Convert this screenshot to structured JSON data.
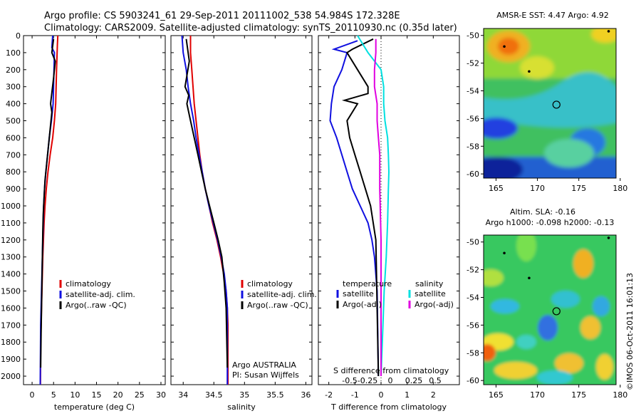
{
  "header": {
    "line1": "Argo profile: CS 5903241_61 29-Sep-2011 20111002_538 54.984S 172.328E",
    "line2": "Climatology: CARS2009. Satellite-adjusted climatology: synTS_20110930.nc (0.35d later)"
  },
  "stamp": "©IMOS 06-Oct-2011 16:01:13",
  "colors": {
    "climatology": "#e00000",
    "satellite": "#1010e0",
    "argo": "#000000",
    "sal_satellite": "#00e0e0",
    "sal_argo": "#e000e0"
  },
  "chart_data": [
    {
      "id": "temperature",
      "type": "line",
      "xlabel": "temperature (deg C)",
      "ylabel": "",
      "xlim": [
        -2,
        31
      ],
      "ylim": [
        2050,
        0
      ],
      "xticks": [
        0,
        5,
        10,
        15,
        20,
        25,
        30
      ],
      "xticklabels": [
        "0",
        "5",
        "10",
        "15",
        "20",
        "25",
        "30"
      ],
      "yticks": [
        0,
        100,
        200,
        300,
        400,
        500,
        600,
        700,
        800,
        900,
        1000,
        1100,
        1200,
        1300,
        1400,
        1500,
        1600,
        1700,
        1800,
        1900,
        2000
      ],
      "yticklabels": [
        "0",
        "100",
        "200",
        "300",
        "400",
        "500",
        "600",
        "700",
        "800",
        "900",
        "1000",
        "1100",
        "1200",
        "1300",
        "1400",
        "1500",
        "1600",
        "1700",
        "1800",
        "1900",
        "2000"
      ],
      "legend": {
        "position": "lower-middle",
        "entries": [
          "climatology",
          "satellite-adj. clim.",
          "Argo(..raw -QC)"
        ]
      },
      "series": [
        {
          "name": "climatology",
          "color": "#e00000",
          "x": [
            6.0,
            5.9,
            5.7,
            5.5,
            5.2,
            4.8,
            4.2,
            3.7,
            3.3,
            3.0,
            2.8,
            2.65,
            2.5,
            2.4,
            2.3,
            2.2,
            2.1,
            2.0,
            1.95
          ],
          "y": [
            0,
            50,
            200,
            400,
            500,
            600,
            700,
            800,
            900,
            1000,
            1100,
            1200,
            1300,
            1400,
            1500,
            1600,
            1700,
            1800,
            2050
          ]
        },
        {
          "name": "satellite-adj. clim.",
          "color": "#1010e0",
          "x": [
            4.8,
            4.6,
            5.2,
            5.1,
            4.9,
            4.5,
            4.0,
            3.6,
            3.2,
            2.9,
            2.7,
            2.6,
            2.5,
            2.4,
            2.3,
            2.2,
            2.1,
            2.0,
            1.9
          ],
          "y": [
            0,
            70,
            100,
            200,
            400,
            500,
            600,
            700,
            800,
            900,
            1000,
            1100,
            1200,
            1300,
            1400,
            1500,
            1600,
            1700,
            2050
          ]
        },
        {
          "name": "Argo(..raw -QC)",
          "color": "#000000",
          "x": [
            5.0,
            4.6,
            5.4,
            5.0,
            4.3,
            4.6,
            4.2,
            3.8,
            3.4,
            3.0,
            2.8,
            2.6,
            2.5,
            2.4,
            2.3,
            2.2,
            2.1,
            2.0
          ],
          "y": [
            20,
            100,
            150,
            250,
            400,
            450,
            550,
            650,
            750,
            850,
            950,
            1050,
            1150,
            1300,
            1450,
            1600,
            1750,
            1950
          ]
        }
      ]
    },
    {
      "id": "salinity",
      "type": "line",
      "xlabel": "salinity",
      "ylabel": "",
      "xlim": [
        33.8,
        36.1
      ],
      "ylim": [
        2050,
        0
      ],
      "xticks": [
        34,
        34.5,
        35,
        35.5,
        36
      ],
      "xticklabels": [
        "34",
        "34.5",
        "35",
        "35.5",
        "36"
      ],
      "annotations": [
        "Argo AUSTRALIA",
        "PI: Susan Wijffels"
      ],
      "legend": {
        "position": "lower-right",
        "entries": [
          "climatology",
          "satellite-adj. clim.",
          "Argo(..raw -QC)"
        ]
      },
      "series": [
        {
          "name": "climatology",
          "color": "#e00000",
          "x": [
            34.12,
            34.12,
            34.14,
            34.16,
            34.18,
            34.21,
            34.24,
            34.27,
            34.31,
            34.36,
            34.42,
            34.48,
            34.55,
            34.61,
            34.66,
            34.7,
            34.72,
            34.73,
            34.73
          ],
          "y": [
            0,
            100,
            200,
            300,
            400,
            500,
            600,
            700,
            800,
            900,
            1000,
            1100,
            1200,
            1300,
            1400,
            1500,
            1600,
            1700,
            2050
          ]
        },
        {
          "name": "satellite-adj. clim.",
          "color": "#1010e0",
          "x": [
            33.98,
            34.0,
            34.05,
            34.08,
            34.12,
            34.17,
            34.21,
            34.26,
            34.31,
            34.36,
            34.42,
            34.49,
            34.56,
            34.62,
            34.67,
            34.7,
            34.72,
            34.72
          ],
          "y": [
            0,
            100,
            200,
            300,
            400,
            500,
            600,
            700,
            800,
            900,
            1000,
            1100,
            1200,
            1300,
            1400,
            1500,
            1600,
            2050
          ]
        },
        {
          "name": "Argo(..raw -QC)",
          "color": "#000000",
          "x": [
            34.05,
            34.1,
            34.03,
            34.09,
            34.06,
            34.12,
            34.18,
            34.24,
            34.3,
            34.36,
            34.43,
            34.5,
            34.57,
            34.63,
            34.67,
            34.7,
            34.72
          ],
          "y": [
            20,
            150,
            300,
            350,
            400,
            500,
            600,
            700,
            800,
            900,
            1000,
            1100,
            1200,
            1300,
            1450,
            1600,
            1950
          ]
        }
      ]
    },
    {
      "id": "differences",
      "type": "line",
      "xlabel": "T difference from climatology",
      "xlabel2": "S difference from climatology",
      "ylabel": "",
      "xlim": [
        -2.4,
        3.0
      ],
      "ylim": [
        2050,
        0
      ],
      "xticks": [
        -2,
        -1,
        0,
        1,
        2
      ],
      "xticklabels": [
        "-2",
        "-1",
        "0",
        "1",
        "2"
      ],
      "xticks_s": [
        "-0.5",
        "-0.25",
        "0",
        "0.25",
        "0.5"
      ],
      "legend": {
        "position": "lower",
        "title_left": "temperature",
        "title_right": "salinity",
        "entries_left": [
          "satellite",
          "Argo(-adj)"
        ],
        "entries_right": [
          "satellite",
          "Argo(-adj)"
        ]
      },
      "series": [
        {
          "name": "T satellite",
          "color": "#1010e0",
          "x": [
            -0.9,
            -1.8,
            -1.3,
            -1.5,
            -1.8,
            -1.9,
            -1.95,
            -1.7,
            -1.5,
            -1.3,
            -1.1,
            -0.8,
            -0.5,
            -0.35,
            -0.25,
            -0.15,
            -0.1
          ],
          "y": [
            30,
            80,
            100,
            200,
            300,
            400,
            500,
            600,
            700,
            800,
            900,
            1000,
            1100,
            1200,
            1300,
            1500,
            2000
          ]
        },
        {
          "name": "T Argo(-adj)",
          "color": "#000000",
          "x": [
            -0.3,
            -1.1,
            -1.3,
            -0.9,
            -0.5,
            -0.5,
            -1.4,
            -0.9,
            -1.3,
            -1.2,
            -1.0,
            -0.8,
            -0.6,
            -0.4,
            -0.2,
            -0.1
          ],
          "y": [
            20,
            80,
            100,
            200,
            300,
            340,
            380,
            400,
            500,
            600,
            700,
            800,
            900,
            1000,
            1200,
            2000
          ]
        },
        {
          "name": "S satellite",
          "color": "#00e0e0",
          "x": [
            -0.9,
            -0.5,
            0.0,
            0.1,
            0.1,
            0.15,
            0.25,
            0.28,
            0.3,
            0.28,
            0.25,
            0.2,
            0.12,
            0.05,
            0.0
          ],
          "y": [
            0,
            100,
            200,
            300,
            400,
            500,
            600,
            700,
            800,
            900,
            1100,
            1300,
            1500,
            1800,
            2000
          ]
        },
        {
          "name": "S Argo(-adj)",
          "color": "#e000e0",
          "x": [
            -0.2,
            -0.2,
            -0.25,
            -0.25,
            -0.15,
            -0.15,
            -0.1,
            -0.05,
            -0.05,
            0.0,
            0.0
          ],
          "y": [
            20,
            100,
            200,
            300,
            400,
            500,
            600,
            700,
            900,
            1200,
            2000
          ]
        }
      ]
    },
    {
      "id": "sst-map",
      "type": "heatmap",
      "title": "AMSR-E SST: 4.47 Argo: 4.92",
      "xlim": [
        163.5,
        179.5
      ],
      "ylim": [
        -60.3,
        -49.5
      ],
      "xticks": [
        165,
        170,
        175,
        180
      ],
      "xticklabels": [
        "165",
        "170",
        "175",
        "180"
      ],
      "yticks": [
        -50,
        -52,
        -54,
        -56,
        -58,
        -60
      ],
      "yticklabels": [
        "-50",
        "-52",
        "-54",
        "-56",
        "-58",
        "-60"
      ],
      "marker": {
        "lon": 172.3,
        "lat": -55.0
      },
      "dots": [
        {
          "lon": 166.0,
          "lat": -50.8
        },
        {
          "lon": 169.0,
          "lat": -52.6
        },
        {
          "lon": 178.6,
          "lat": -49.7
        }
      ]
    },
    {
      "id": "sla-map",
      "type": "heatmap",
      "title": "Altim. SLA: -0.16",
      "subtitle": "Argo h1000: -0.098 h2000: -0.13",
      "xlim": [
        163.5,
        179.5
      ],
      "ylim": [
        -60.3,
        -49.5
      ],
      "xticks": [
        165,
        170,
        175,
        180
      ],
      "xticklabels": [
        "165",
        "170",
        "175",
        "180"
      ],
      "yticks": [
        -50,
        -52,
        -54,
        -56,
        -58,
        -60
      ],
      "yticklabels": [
        "-50",
        "-52",
        "-54",
        "-56",
        "-58",
        "-60"
      ],
      "marker": {
        "lon": 172.3,
        "lat": -55.0
      },
      "dots": [
        {
          "lon": 166.0,
          "lat": -50.8
        },
        {
          "lon": 169.0,
          "lat": -52.6
        },
        {
          "lon": 178.6,
          "lat": -49.7
        }
      ]
    }
  ]
}
